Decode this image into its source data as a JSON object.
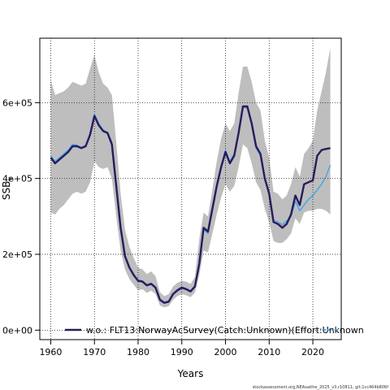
{
  "chart_data": {
    "type": "line",
    "title": "",
    "xlabel": "Years",
    "ylabel": "SSB",
    "ylabel_sub": "y",
    "xlim": [
      1957.5,
      2026.5
    ],
    "ylim": [
      -25000,
      770000
    ],
    "xticks": [
      1960,
      1970,
      1980,
      1990,
      2000,
      2010,
      2020
    ],
    "yticks": [
      0,
      200000,
      400000,
      600000
    ],
    "ytick_labels": [
      "0e+00",
      "2e+05",
      "4e+05",
      "6e+05"
    ],
    "grid": true,
    "legend": {
      "position": "bottom",
      "label": "w.o.: FLT13:NorwayAcSurvey(Catch:Unknown)(Effort:Unknown"
    },
    "colors": {
      "band": "#bebebe",
      "main": "#2a1a5e",
      "alt": "#3ea6e8",
      "grid": "#000000"
    },
    "footer": "stockassessment.org,NEAsaithe_2025_v3,r10811, git:1cc464b806f",
    "years": [
      1960,
      1961,
      1962,
      1963,
      1964,
      1965,
      1966,
      1967,
      1968,
      1969,
      1970,
      1971,
      1972,
      1973,
      1974,
      1975,
      1976,
      1977,
      1978,
      1979,
      1980,
      1981,
      1982,
      1983,
      1984,
      1985,
      1986,
      1987,
      1988,
      1989,
      1990,
      1991,
      1992,
      1993,
      1994,
      1995,
      1996,
      1997,
      1998,
      1999,
      2000,
      2001,
      2002,
      2003,
      2004,
      2005,
      2006,
      2007,
      2008,
      2009,
      2010,
      2011,
      2012,
      2013,
      2014,
      2015,
      2016,
      2017,
      2018,
      2019,
      2020,
      2021,
      2022,
      2023,
      2024
    ],
    "series": [
      {
        "name": "",
        "role": "main",
        "values": [
          455000,
          440000,
          450000,
          460000,
          470000,
          485000,
          485000,
          480000,
          485000,
          515000,
          565000,
          540000,
          525000,
          520000,
          490000,
          380000,
          270000,
          195000,
          165000,
          145000,
          130000,
          128000,
          118000,
          122000,
          112000,
          80000,
          72000,
          75000,
          95000,
          105000,
          112000,
          108000,
          102000,
          115000,
          175000,
          270000,
          260000,
          320000,
          380000,
          430000,
          470000,
          440000,
          460000,
          520000,
          590000,
          590000,
          545000,
          485000,
          465000,
          400000,
          360000,
          285000,
          280000,
          270000,
          280000,
          305000,
          355000,
          330000,
          385000,
          390000,
          395000,
          460000,
          475000,
          478000,
          480000
        ]
      },
      {
        "name": "",
        "role": "alt",
        "values": [
          460000,
          445000,
          455000,
          465000,
          475000,
          490000,
          488000,
          482000,
          488000,
          520000,
          570000,
          545000,
          528000,
          522000,
          495000,
          385000,
          275000,
          198000,
          168000,
          148000,
          133000,
          130000,
          120000,
          124000,
          114000,
          82000,
          74000,
          77000,
          97000,
          107000,
          114000,
          110000,
          104000,
          117000,
          170000,
          265000,
          255000,
          315000,
          375000,
          425000,
          475000,
          445000,
          465000,
          525000,
          590000,
          585000,
          540000,
          480000,
          460000,
          405000,
          355000,
          290000,
          285000,
          278000,
          288000,
          300000,
          340000,
          315000,
          330000,
          345000,
          355000,
          370000,
          385000,
          405000,
          435000
        ]
      }
    ],
    "band": {
      "lower": [
        310000,
        305000,
        320000,
        330000,
        345000,
        360000,
        365000,
        360000,
        365000,
        390000,
        445000,
        430000,
        425000,
        430000,
        400000,
        300000,
        210000,
        160000,
        135000,
        120000,
        105000,
        108000,
        98000,
        104000,
        95000,
        65000,
        60000,
        63000,
        80000,
        90000,
        95000,
        92000,
        87000,
        99000,
        145000,
        210000,
        205000,
        255000,
        305000,
        350000,
        385000,
        365000,
        380000,
        430000,
        490000,
        480000,
        440000,
        390000,
        370000,
        320000,
        285000,
        235000,
        230000,
        230000,
        240000,
        255000,
        295000,
        280000,
        310000,
        315000,
        315000,
        320000,
        320000,
        315000,
        305000
      ],
      "upper": [
        660000,
        620000,
        625000,
        630000,
        640000,
        655000,
        650000,
        645000,
        650000,
        690000,
        725000,
        680000,
        650000,
        640000,
        620000,
        495000,
        360000,
        265000,
        220000,
        190000,
        165000,
        160000,
        148000,
        155000,
        142000,
        100000,
        90000,
        95000,
        115000,
        125000,
        130000,
        128000,
        122000,
        140000,
        240000,
        310000,
        300000,
        370000,
        445000,
        505000,
        545000,
        525000,
        545000,
        625000,
        695000,
        695000,
        655000,
        600000,
        580000,
        500000,
        455000,
        365000,
        360000,
        345000,
        355000,
        385000,
        430000,
        405000,
        465000,
        480000,
        500000,
        580000,
        630000,
        680000,
        745000
      ]
    }
  }
}
